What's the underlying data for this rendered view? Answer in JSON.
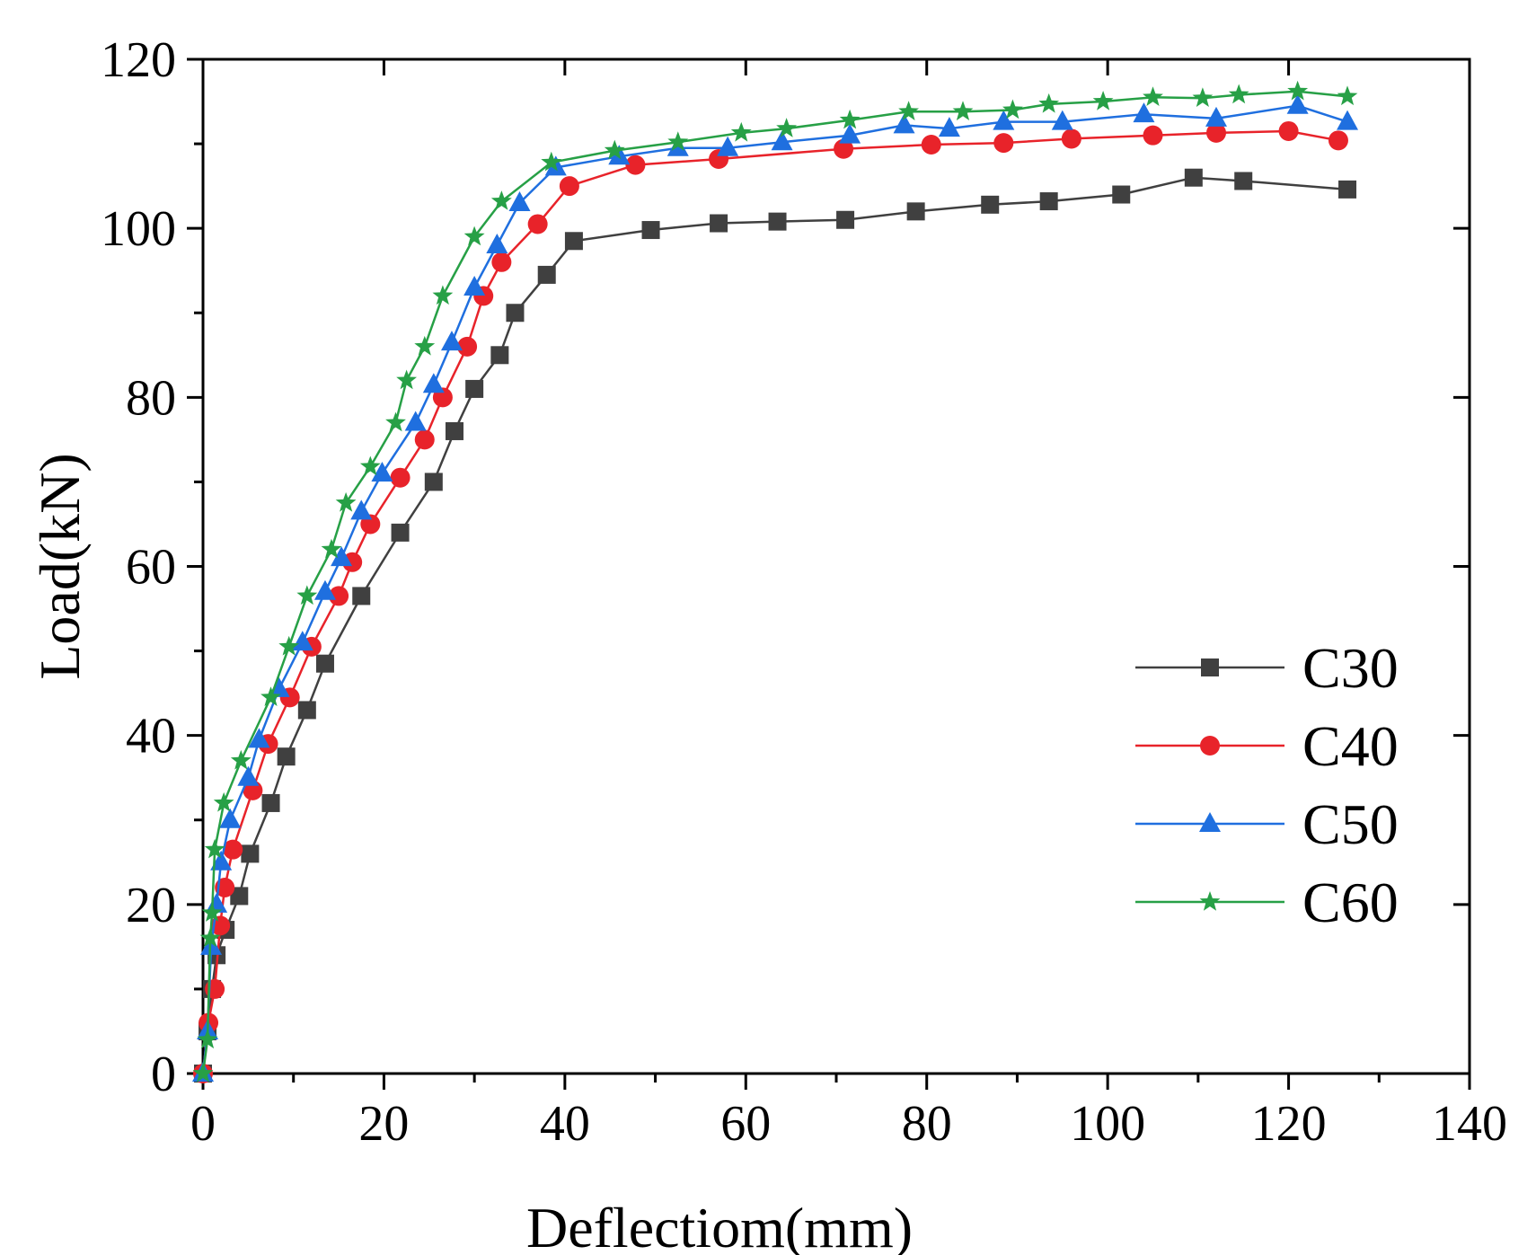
{
  "chart_data": {
    "type": "line",
    "title": "",
    "xlabel": "Deflectiom(mm)",
    "ylabel": "Load(kN)",
    "xlim": [
      0,
      140
    ],
    "ylim": [
      0,
      120
    ],
    "xticks": [
      0,
      20,
      40,
      60,
      80,
      100,
      120,
      140
    ],
    "yticks": [
      0,
      20,
      40,
      60,
      80,
      100,
      120
    ],
    "legend_position": "right-middle",
    "series": [
      {
        "name": "C30",
        "color": "#404040",
        "marker": "square",
        "x": [
          0,
          0.5,
          1.0,
          1.5,
          2.5,
          4.0,
          5.2,
          7.5,
          9.2,
          11.5,
          13.5,
          17.5,
          21.8,
          25.5,
          27.8,
          30.0,
          32.8,
          34.5,
          38.0,
          41.0,
          49.5,
          57.0,
          63.5,
          71.0,
          78.8,
          87.0,
          93.5,
          101.5,
          109.5,
          115.0,
          126.5
        ],
        "values": [
          0,
          5,
          10,
          14,
          17,
          21,
          26,
          32,
          37.5,
          43,
          48.5,
          56.5,
          64,
          70,
          76,
          81,
          85,
          90,
          94.5,
          98.5,
          99.8,
          100.6,
          100.8,
          101,
          102,
          102.8,
          103.2,
          104,
          106,
          105.6,
          104.6
        ]
      },
      {
        "name": "C40",
        "color": "#e8232a",
        "marker": "circle",
        "x": [
          0,
          0.6,
          1.3,
          1.9,
          2.4,
          3.3,
          5.5,
          7.2,
          9.6,
          12.0,
          15.0,
          16.5,
          18.5,
          21.8,
          24.5,
          26.5,
          29.2,
          31.0,
          33.0,
          37.0,
          40.5,
          47.8,
          57.0,
          70.8,
          80.5,
          88.5,
          96.0,
          105.0,
          112.0,
          120.0,
          125.5
        ],
        "values": [
          0,
          6,
          10,
          17.5,
          22,
          26.5,
          33.5,
          39,
          44.5,
          50.5,
          56.5,
          60.5,
          65,
          70.5,
          75,
          80,
          86,
          92,
          96,
          100.5,
          105,
          107.5,
          108.2,
          109.4,
          109.9,
          110.1,
          110.6,
          111,
          111.3,
          111.5,
          110.4
        ]
      },
      {
        "name": "C50",
        "color": "#1f6fdf",
        "marker": "triangle",
        "x": [
          0,
          0.5,
          0.9,
          1.5,
          2.0,
          3.0,
          5.0,
          6.2,
          8.4,
          11.0,
          13.5,
          15.3,
          17.5,
          19.8,
          23.5,
          25.5,
          27.5,
          30.0,
          32.5,
          35.0,
          39.0,
          46.0,
          52.5,
          58.0,
          64.0,
          71.5,
          77.5,
          82.5,
          88.5,
          95.0,
          104.0,
          112.0,
          121.0,
          126.5
        ],
        "values": [
          0,
          5,
          15,
          20,
          25,
          30,
          35,
          39.5,
          45.5,
          51,
          57,
          61,
          66.5,
          71,
          77,
          81.5,
          86.5,
          93,
          98,
          103,
          107.2,
          108.5,
          109.5,
          109.5,
          110.2,
          111,
          112.2,
          111.8,
          112.6,
          112.6,
          113.5,
          113,
          114.5,
          112.6
        ]
      },
      {
        "name": "C60",
        "color": "#27a046",
        "marker": "star",
        "x": [
          0,
          0.5,
          0.8,
          1.0,
          1.3,
          2.3,
          4.2,
          7.5,
          9.5,
          11.5,
          14.2,
          15.8,
          18.5,
          21.3,
          22.5,
          24.5,
          26.5,
          30.0,
          33.0,
          38.5,
          45.5,
          52.5,
          59.5,
          64.5,
          71.5,
          78.0,
          84.0,
          89.5,
          93.5,
          99.5,
          105.0,
          110.5,
          114.5,
          121.0,
          126.5
        ],
        "values": [
          0,
          4,
          16,
          19,
          26.5,
          32,
          37,
          44.5,
          50.5,
          56.5,
          62,
          67.5,
          71.8,
          77,
          82,
          86,
          92,
          99,
          103.2,
          107.8,
          109.2,
          110.2,
          111.3,
          111.8,
          112.8,
          113.8,
          113.8,
          114,
          114.7,
          115,
          115.5,
          115.4,
          115.8,
          116.2,
          115.6
        ]
      }
    ]
  }
}
